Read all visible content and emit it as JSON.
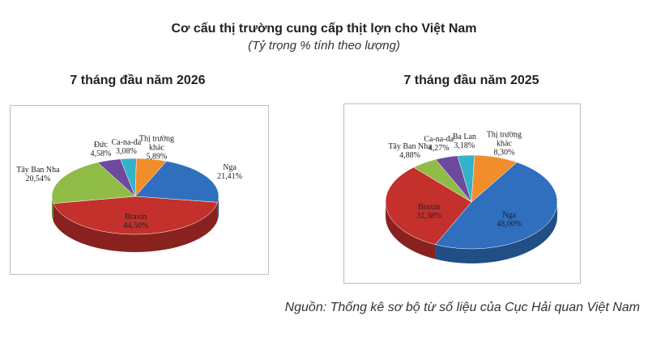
{
  "title": "Cơ cấu thị trường cung cấp thịt lợn cho Việt Nam",
  "subtitle": "(Tỷ trọng % tính theo lượng)",
  "source": "Nguồn: Thống kê sơ bộ từ số liệu của Cục Hải quan Việt Nam",
  "chart_data": [
    {
      "type": "pie",
      "title": "7 tháng đầu năm 2026",
      "categories": [
        "Nga",
        "Braxin",
        "Tây Ban Nha",
        "Đức",
        "Ca-na-đa",
        "Thị trường khác"
      ],
      "values": [
        21.41,
        44.5,
        20.54,
        4.58,
        3.08,
        5.89
      ],
      "value_labels": [
        "21,41%",
        "44,50%",
        "20,54%",
        "4,58%",
        "3,08%",
        "5,89%"
      ],
      "colors": [
        "#2f6fbe",
        "#c4302c",
        "#8fbb47",
        "#6d4a9e",
        "#33b2c9",
        "#f18d2a"
      ]
    },
    {
      "type": "pie",
      "title": "7 tháng đầu năm 2025",
      "categories": [
        "Nga",
        "Braxin",
        "Tây Ban Nha",
        "Ca-na-đa",
        "Ba Lan",
        "Thị trường khác"
      ],
      "values": [
        48.0,
        31.38,
        4.88,
        4.27,
        3.18,
        8.3
      ],
      "value_labels": [
        "48,00%",
        "31,38%",
        "4,88%",
        "4,27%",
        "3,18%",
        "8,30%"
      ],
      "colors": [
        "#2f6fbe",
        "#c4302c",
        "#8fbb47",
        "#6d4a9e",
        "#33b2c9",
        "#f18d2a"
      ]
    }
  ]
}
